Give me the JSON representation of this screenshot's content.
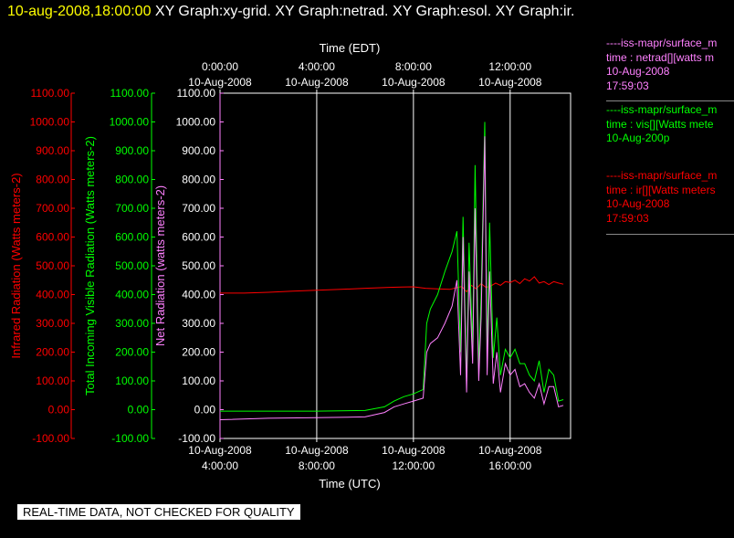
{
  "header": {
    "timestamp": "10-aug-2008,18:00:00",
    "graphs": [
      "XY Graph:xy-grid.",
      "XY Graph:netrad.",
      "XY Graph:esol.",
      "XY Graph:ir."
    ]
  },
  "colors": {
    "ir": "#ff0000",
    "vis": "#00ff00",
    "net": "#ff80ff",
    "grid": "#ffffff",
    "banner_bg": "#ffffff"
  },
  "legend": [
    {
      "head": "----iss-mapr/surface_m",
      "line1": "time : netrad[][watts m",
      "line2": "10-Aug-2008",
      "line3": "17:59:03",
      "color": "#ff80ff"
    },
    {
      "head": "----iss-mapr/surface_m",
      "line1": "time : vis[][Watts mete",
      "line2": "10-Aug-200p",
      "line3": "",
      "color": "#00ff00"
    },
    {
      "head": "----iss-mapr/surface_m",
      "line1": "time : ir[][Watts meters",
      "line2": "10-Aug-2008",
      "line3": "17:59:03",
      "color": "#ff0000"
    }
  ],
  "banner": "REAL-TIME DATA, NOT CHECKED FOR QUALITY",
  "chart_data": {
    "type": "line",
    "title": "",
    "xlabel_bottom": "Time (UTC)",
    "xlabel_top": "Time (EDT)",
    "x_ticks_bottom": [
      {
        "hour": 4,
        "date": "10-Aug-2008",
        "time": "4:00:00"
      },
      {
        "hour": 8,
        "date": "10-Aug-2008",
        "time": "8:00:00"
      },
      {
        "hour": 12,
        "date": "10-Aug-2008",
        "time": "12:00:00"
      },
      {
        "hour": 16,
        "date": "10-Aug-2008",
        "time": "16:00:00"
      }
    ],
    "x_ticks_top": [
      {
        "hour": 4,
        "time": "0:00:00",
        "date": "10-Aug-2008"
      },
      {
        "hour": 8,
        "time": "4:00:00",
        "date": "10-Aug-2008"
      },
      {
        "hour": 12,
        "time": "8:00:00",
        "date": "10-Aug-2008"
      },
      {
        "hour": 16,
        "time": "12:00:00",
        "date": "10-Aug-2008"
      }
    ],
    "x_range_utc_hours": [
      4,
      18.5
    ],
    "y_range": [
      -100,
      1100
    ],
    "y_ticks": [
      "-100.00",
      "0.00",
      "100.00",
      "200.00",
      "300.00",
      "400.00",
      "500.00",
      "600.00",
      "700.00",
      "800.00",
      "900.00",
      "1000.00",
      "1100.00"
    ],
    "y_axes": [
      {
        "label": "Infrared Radiation (Watts meters-2)",
        "color": "#ff0000"
      },
      {
        "label": "Total Incoming Visible Radiation (Watts meters-2)",
        "color": "#00ff00"
      },
      {
        "label": "Net Radiation (watts meters-2)",
        "color": "#ff80ff"
      }
    ],
    "grid": true,
    "series": [
      {
        "name": "time : ir[][Watts meters",
        "color": "#ff0000",
        "x": [
          4,
          5,
          6,
          7,
          8,
          9,
          10,
          11,
          11.5,
          12,
          12.5,
          13,
          13.5,
          14,
          14.2,
          14.4,
          14.6,
          14.8,
          15,
          15.2,
          15.4,
          15.6,
          15.8,
          16,
          16.2,
          16.4,
          16.6,
          16.8,
          17,
          17.2,
          17.4,
          17.6,
          17.8,
          18,
          18.2
        ],
        "y": [
          405,
          405,
          408,
          412,
          415,
          418,
          422,
          425,
          426,
          427,
          422,
          420,
          418,
          428,
          410,
          432,
          420,
          438,
          425,
          430,
          440,
          432,
          445,
          442,
          450,
          438,
          455,
          447,
          462,
          440,
          445,
          435,
          445,
          440,
          436
        ]
      },
      {
        "name": "time : vis[][Watts mete",
        "color": "#00ff00",
        "x": [
          4,
          6,
          8,
          10,
          10.8,
          11.2,
          11.6,
          12,
          12.4,
          12.55,
          12.7,
          13,
          13.3,
          13.6,
          13.8,
          13.95,
          14.05,
          14.2,
          14.3,
          14.45,
          14.55,
          14.7,
          14.8,
          14.95,
          15.05,
          15.15,
          15.3,
          15.45,
          15.6,
          15.8,
          16,
          16.2,
          16.4,
          16.6,
          16.8,
          17,
          17.2,
          17.4,
          17.6,
          17.8,
          18,
          18.2
        ],
        "y": [
          -5,
          -5,
          -5,
          -3,
          10,
          30,
          45,
          55,
          70,
          300,
          350,
          400,
          480,
          550,
          620,
          200,
          670,
          100,
          580,
          220,
          850,
          150,
          400,
          1000,
          200,
          650,
          180,
          320,
          120,
          210,
          180,
          210,
          160,
          160,
          120,
          100,
          170,
          60,
          140,
          120,
          30,
          35
        ]
      },
      {
        "name": "time : netrad[][watts m",
        "color": "#ff80ff",
        "x": [
          4,
          6,
          8,
          10,
          10.8,
          11.2,
          11.6,
          12,
          12.4,
          12.55,
          12.7,
          13,
          13.3,
          13.6,
          13.8,
          13.95,
          14.05,
          14.2,
          14.3,
          14.45,
          14.55,
          14.7,
          14.8,
          14.95,
          15.05,
          15.15,
          15.3,
          15.45,
          15.6,
          15.8,
          16,
          16.2,
          16.4,
          16.6,
          16.8,
          17,
          17.2,
          17.4,
          17.6,
          17.8,
          18,
          18.2
        ],
        "y": [
          -35,
          -30,
          -28,
          -25,
          -10,
          10,
          20,
          30,
          40,
          200,
          230,
          250,
          300,
          360,
          450,
          120,
          600,
          60,
          480,
          160,
          700,
          100,
          320,
          950,
          120,
          480,
          90,
          200,
          60,
          160,
          120,
          140,
          80,
          90,
          60,
          40,
          90,
          20,
          80,
          80,
          10,
          15
        ]
      }
    ]
  }
}
